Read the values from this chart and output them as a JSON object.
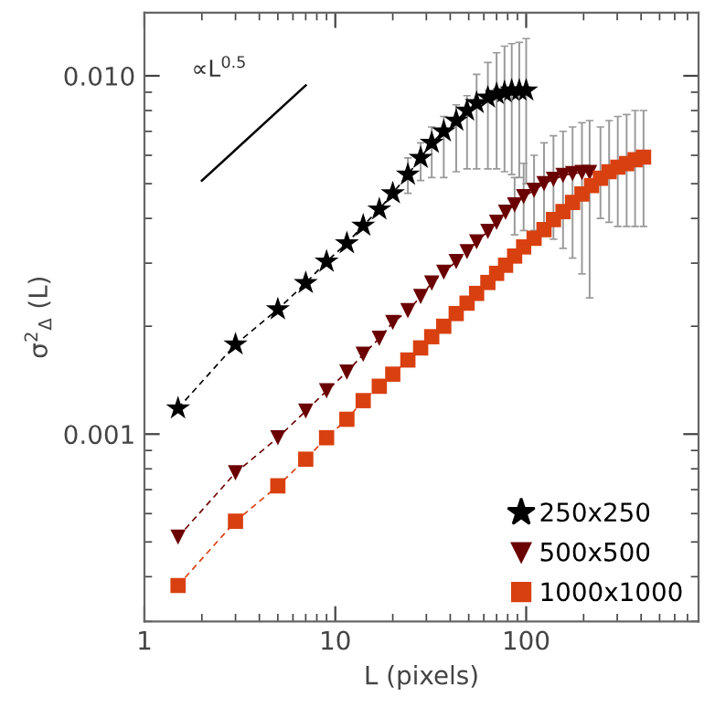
{
  "chart_data": {
    "type": "line",
    "xlabel": "L (pixels)",
    "ylabel": "σ$^{2}$$_{Δ}$ (L)",
    "log": "xy",
    "xlim": [
      1,
      800
    ],
    "ylim": [
      0.0003,
      0.015
    ],
    "xticks": [
      1,
      10,
      100
    ],
    "yticks": [
      {
        "value": 0.001,
        "label": "0.001"
      },
      {
        "value": 0.01,
        "label": "0.010"
      }
    ],
    "grid": false,
    "legend": "bottom right",
    "annotations": [
      "∝L$^{0.5}$"
    ],
    "series": [
      {
        "name": "250x250",
        "line_style": "dashed",
        "color": "#000000",
        "marker": "star",
        "x": [
          1.5,
          3,
          5,
          7,
          9,
          11.5,
          14,
          17,
          20,
          24,
          28,
          32,
          37,
          43,
          49,
          55,
          63,
          70,
          77,
          84,
          92,
          100
        ],
        "values": [
          0.00118,
          0.00178,
          0.00223,
          0.00264,
          0.00303,
          0.00341,
          0.00382,
          0.00424,
          0.0047,
          0.0053,
          0.0059,
          0.0065,
          0.007,
          0.0075,
          0.008,
          0.0084,
          0.0087,
          0.0089,
          0.009,
          0.0091,
          0.0091,
          0.0091
        ],
        "errors": [
          null,
          null,
          null,
          null,
          null,
          null,
          null,
          null,
          null,
          [
            0.0047,
            0.0059
          ],
          [
            0.0051,
            0.0065
          ],
          [
            0.0052,
            0.0072
          ],
          [
            0.0052,
            0.0077
          ],
          [
            0.0054,
            0.0083
          ],
          [
            0.0055,
            0.0088
          ],
          [
            0.0055,
            0.0101
          ],
          [
            0.0055,
            0.0109
          ],
          [
            0.0055,
            0.0116
          ],
          [
            0.0054,
            0.0121
          ],
          [
            0.0053,
            0.0123
          ],
          [
            0.0052,
            0.0124
          ],
          [
            0.005,
            0.0127
          ]
        ]
      },
      {
        "name": "500x500",
        "line_style": "dashed",
        "color": "#6b0000",
        "marker": "triangle",
        "x": [
          1.5,
          3,
          5,
          7,
          9,
          11.5,
          14,
          17,
          20,
          24,
          28,
          32,
          37,
          43,
          49,
          55,
          63,
          70,
          78,
          87,
          97,
          110,
          124,
          139,
          156,
          175,
          196,
          215
        ],
        "values": [
          0.000516,
          0.00078,
          0.000977,
          0.00116,
          0.00132,
          0.00149,
          0.00167,
          0.00185,
          0.00205,
          0.00221,
          0.00242,
          0.00264,
          0.00283,
          0.00303,
          0.00323,
          0.00344,
          0.00368,
          0.0039,
          0.00416,
          0.00436,
          0.0046,
          0.00479,
          0.005,
          0.00514,
          0.00527,
          0.00533,
          0.00537,
          0.00537
        ],
        "errors": [
          null,
          null,
          null,
          null,
          null,
          null,
          null,
          null,
          null,
          null,
          null,
          null,
          null,
          null,
          null,
          null,
          null,
          null,
          null,
          [
            0.0036,
            0.0052
          ],
          [
            0.0037,
            0.0057
          ],
          [
            0.0037,
            0.006
          ],
          [
            0.0036,
            0.0065
          ],
          [
            0.0035,
            0.0068
          ],
          [
            0.0033,
            0.007
          ],
          [
            0.0031,
            0.0072
          ],
          [
            0.0028,
            0.0074
          ],
          [
            0.0024,
            0.0075
          ]
        ]
      },
      {
        "name": "1000x1000",
        "line_style": "dashed",
        "color": "#d94010",
        "marker": "square",
        "x": [
          1.5,
          3,
          5,
          7,
          9,
          11.5,
          14,
          17,
          20,
          24,
          28,
          32,
          37,
          43,
          49,
          55,
          63,
          70,
          78,
          87,
          97,
          110,
          124,
          139,
          156,
          175,
          196,
          220,
          245,
          272,
          302,
          336,
          372,
          412
        ],
        "values": [
          0.000378,
          0.000571,
          0.000717,
          0.000851,
          0.000977,
          0.0011,
          0.00124,
          0.00136,
          0.00147,
          0.00161,
          0.00174,
          0.00187,
          0.002,
          0.00217,
          0.00232,
          0.00247,
          0.00265,
          0.00281,
          0.00296,
          0.00314,
          0.00333,
          0.00352,
          0.00372,
          0.00397,
          0.00418,
          0.00443,
          0.00468,
          0.00494,
          0.00518,
          0.0054,
          0.00556,
          0.00569,
          0.00583,
          0.00593
        ],
        "errors": [
          null,
          null,
          null,
          null,
          null,
          null,
          null,
          null,
          null,
          null,
          null,
          null,
          null,
          null,
          null,
          null,
          null,
          null,
          null,
          null,
          null,
          null,
          null,
          null,
          null,
          null,
          null,
          null,
          [
            0.004,
            0.0072
          ],
          [
            0.0039,
            0.0075
          ],
          [
            0.0038,
            0.0077
          ],
          [
            0.0038,
            0.0078
          ],
          [
            0.0038,
            0.008
          ],
          [
            0.0038,
            0.008
          ]
        ]
      },
      {
        "line_style": "solid",
        "color": "#000000",
        "marker": "none",
        "x": [
          2,
          7
        ],
        "values": [
          0.0051,
          0.0094
        ]
      }
    ]
  }
}
